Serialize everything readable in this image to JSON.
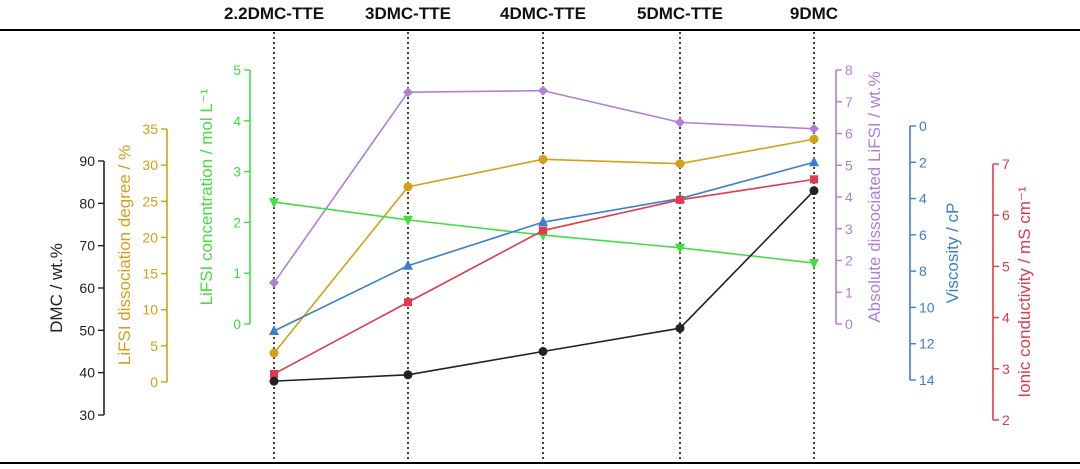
{
  "chart_data": {
    "type": "line",
    "categories": [
      "2.2DMC-TTE",
      "3DMC-TTE",
      "4DMC-TTE",
      "5DMC-TTE",
      "9DMC"
    ],
    "axes": [
      {
        "id": "dmc",
        "label": "DMC / wt.%",
        "color": "#222222",
        "ticks": [
          30,
          40,
          50,
          60,
          70,
          80,
          90
        ],
        "range": [
          30,
          90
        ]
      },
      {
        "id": "deg",
        "label": "LiFSI dissociation degree / %",
        "color": "#d4a017",
        "ticks": [
          0,
          5,
          10,
          15,
          20,
          25,
          30,
          35
        ],
        "range": [
          0,
          35
        ]
      },
      {
        "id": "conc",
        "label": "LiFSI concentration / mol L⁻¹",
        "color": "#44dd44",
        "ticks": [
          0,
          1,
          2,
          3,
          4,
          5
        ],
        "range": [
          0,
          5
        ]
      },
      {
        "id": "abs",
        "label": "Absolute dissociated LiFSI / wt.%",
        "color": "#b07fd8",
        "ticks": [
          0,
          1,
          2,
          3,
          4,
          5,
          6,
          7,
          8
        ],
        "range": [
          0,
          8
        ]
      },
      {
        "id": "visc",
        "label": "Viscosity / cP",
        "color": "#3a7fd0",
        "ticks": [
          0,
          2,
          4,
          6,
          8,
          10,
          12,
          14
        ],
        "range": [
          0,
          14
        ],
        "reversed": true
      },
      {
        "id": "cond",
        "label": "Ionic conductivity / mS cm⁻¹",
        "color": "#e23a4a",
        "ticks": [
          2,
          3,
          4,
          5,
          6,
          7
        ],
        "range": [
          2,
          7
        ]
      }
    ],
    "series": [
      {
        "axis": "abs",
        "values": [
          1.3,
          7.3,
          7.35,
          6.35,
          6.15
        ]
      },
      {
        "axis": "deg",
        "values": [
          4,
          27,
          30.8,
          30.2,
          33.6
        ]
      },
      {
        "axis": "conc",
        "values": [
          2.4,
          2.05,
          1.75,
          1.5,
          1.2
        ]
      },
      {
        "axis": "visc",
        "values": [
          11.3,
          7.7,
          5.3,
          4,
          2
        ]
      },
      {
        "axis": "cond",
        "values": [
          2.9,
          4.3,
          5.7,
          6.3,
          6.7
        ]
      },
      {
        "axis": "dmc",
        "values": [
          38,
          39.5,
          45,
          50.5,
          83
        ]
      }
    ]
  }
}
